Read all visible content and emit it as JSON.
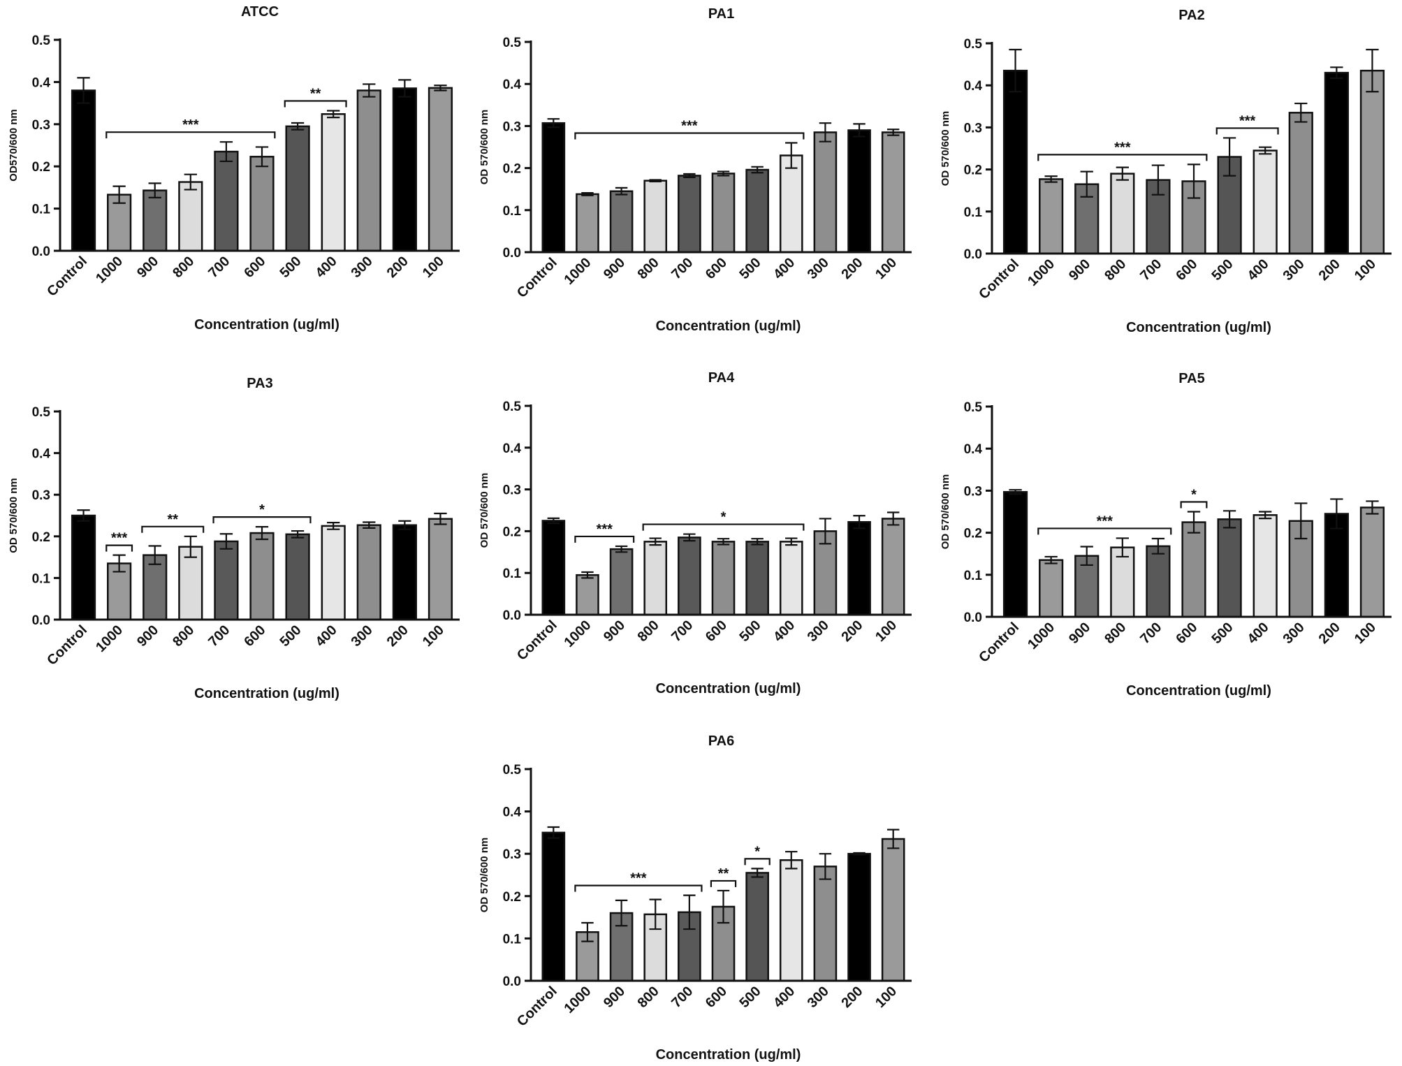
{
  "chart_data": [
    {
      "type": "bar",
      "title": "ATCC",
      "ylabel": "OD570/600 nm",
      "xlabel": "Concentration (ug/ml)",
      "ylim": [
        0,
        0.5
      ],
      "yticks": [
        "0.0",
        "0.1",
        "0.2",
        "0.3",
        "0.4",
        "0.5"
      ],
      "categories": [
        "Control",
        "1000",
        "900",
        "800",
        "700",
        "600",
        "500",
        "400",
        "300",
        "200",
        "100"
      ],
      "values": [
        0.38,
        0.133,
        0.143,
        0.163,
        0.235,
        0.223,
        0.295,
        0.324,
        0.38,
        0.385,
        0.386
      ],
      "errors": [
        0.03,
        0.02,
        0.017,
        0.018,
        0.023,
        0.023,
        0.008,
        0.008,
        0.015,
        0.02,
        0.006
      ],
      "colors": [
        "#000000",
        "#9a9a9a",
        "#6f6f6f",
        "#dcdcdc",
        "#595959",
        "#8e8e8e",
        "#555555",
        "#e6e6e6",
        "#8e8e8e",
        "#000000",
        "#9a9a9a"
      ],
      "annotations": [
        {
          "label": "***",
          "from": "1000",
          "to": "600"
        },
        {
          "label": "**",
          "from": "500",
          "to": "400"
        }
      ]
    },
    {
      "type": "bar",
      "title": "PA1",
      "ylabel": "OD 570/600 nm",
      "xlabel": "Concentration (ug/ml)",
      "ylim": [
        0,
        0.5
      ],
      "yticks": [
        "0.0",
        "0.1",
        "0.2",
        "0.3",
        "0.4",
        "0.5"
      ],
      "categories": [
        "Control",
        "1000",
        "900",
        "800",
        "700",
        "600",
        "500",
        "400",
        "300",
        "200",
        "100"
      ],
      "values": [
        0.307,
        0.138,
        0.145,
        0.17,
        0.182,
        0.187,
        0.196,
        0.23,
        0.285,
        0.29,
        0.285
      ],
      "errors": [
        0.01,
        0.003,
        0.008,
        0.002,
        0.004,
        0.005,
        0.007,
        0.03,
        0.022,
        0.015,
        0.007
      ],
      "colors": [
        "#000000",
        "#9a9a9a",
        "#6f6f6f",
        "#dcdcdc",
        "#595959",
        "#8e8e8e",
        "#555555",
        "#e6e6e6",
        "#8e8e8e",
        "#000000",
        "#9a9a9a"
      ],
      "annotations": [
        {
          "label": "***",
          "from": "1000",
          "to": "400"
        }
      ]
    },
    {
      "type": "bar",
      "title": "PA2",
      "ylabel": "OD 570/600 nm",
      "xlabel": "Concentration (ug/ml)",
      "ylim": [
        0,
        0.5
      ],
      "yticks": [
        "0.0",
        "0.1",
        "0.2",
        "0.3",
        "0.4",
        "0.5"
      ],
      "categories": [
        "Control",
        "1000",
        "900",
        "800",
        "700",
        "600",
        "500",
        "400",
        "300",
        "200",
        "100"
      ],
      "values": [
        0.435,
        0.177,
        0.165,
        0.19,
        0.175,
        0.172,
        0.23,
        0.245,
        0.335,
        0.43,
        0.435
      ],
      "errors": [
        0.05,
        0.007,
        0.03,
        0.015,
        0.035,
        0.04,
        0.045,
        0.008,
        0.022,
        0.013,
        0.05
      ],
      "colors": [
        "#000000",
        "#9a9a9a",
        "#6f6f6f",
        "#dcdcdc",
        "#595959",
        "#8e8e8e",
        "#555555",
        "#e6e6e6",
        "#8e8e8e",
        "#000000",
        "#9a9a9a"
      ],
      "annotations": [
        {
          "label": "***",
          "from": "1000",
          "to": "600"
        },
        {
          "label": "***",
          "from": "500",
          "to": "400"
        }
      ]
    },
    {
      "type": "bar",
      "title": "PA3",
      "ylabel": "OD 570/600 nm",
      "xlabel": "Concentration (ug/ml)",
      "ylim": [
        0,
        0.5
      ],
      "yticks": [
        "0.0",
        "0.1",
        "0.2",
        "0.3",
        "0.4",
        "0.5"
      ],
      "categories": [
        "Control",
        "1000",
        "900",
        "800",
        "700",
        "600",
        "500",
        "400",
        "300",
        "200",
        "100"
      ],
      "values": [
        0.25,
        0.135,
        0.155,
        0.175,
        0.188,
        0.208,
        0.205,
        0.225,
        0.227,
        0.227,
        0.242
      ],
      "errors": [
        0.013,
        0.02,
        0.022,
        0.025,
        0.018,
        0.015,
        0.008,
        0.008,
        0.007,
        0.01,
        0.013
      ],
      "colors": [
        "#000000",
        "#9a9a9a",
        "#6f6f6f",
        "#dcdcdc",
        "#595959",
        "#8e8e8e",
        "#555555",
        "#e6e6e6",
        "#8e8e8e",
        "#000000",
        "#9a9a9a"
      ],
      "annotations": [
        {
          "label": "***",
          "from": "1000",
          "to": "1000"
        },
        {
          "label": "**",
          "from": "900",
          "to": "800"
        },
        {
          "label": "*",
          "from": "700",
          "to": "500"
        }
      ]
    },
    {
      "type": "bar",
      "title": "PA4",
      "ylabel": "OD 570/600 nm",
      "xlabel": "Concentration (ug/ml)",
      "ylim": [
        0,
        0.5
      ],
      "yticks": [
        "0.0",
        "0.1",
        "0.2",
        "0.3",
        "0.4",
        "0.5"
      ],
      "categories": [
        "Control",
        "1000",
        "900",
        "800",
        "700",
        "600",
        "500",
        "400",
        "300",
        "200",
        "100"
      ],
      "values": [
        0.225,
        0.095,
        0.157,
        0.175,
        0.185,
        0.175,
        0.175,
        0.175,
        0.2,
        0.222,
        0.23
      ],
      "errors": [
        0.006,
        0.007,
        0.007,
        0.008,
        0.008,
        0.007,
        0.007,
        0.008,
        0.03,
        0.015,
        0.015
      ],
      "colors": [
        "#000000",
        "#9a9a9a",
        "#6f6f6f",
        "#dcdcdc",
        "#595959",
        "#8e8e8e",
        "#555555",
        "#e6e6e6",
        "#8e8e8e",
        "#000000",
        "#9a9a9a"
      ],
      "annotations": [
        {
          "label": "***",
          "from": "1000",
          "to": "900"
        },
        {
          "label": "*",
          "from": "800",
          "to": "400"
        }
      ]
    },
    {
      "type": "bar",
      "title": "PA5",
      "ylabel": "OD 570/600 nm",
      "xlabel": "Concentration (ug/ml)",
      "ylim": [
        0,
        0.5
      ],
      "yticks": [
        "0.0",
        "0.1",
        "0.2",
        "0.3",
        "0.4",
        "0.5"
      ],
      "categories": [
        "Control",
        "1000",
        "900",
        "800",
        "700",
        "600",
        "500",
        "400",
        "300",
        "200",
        "100"
      ],
      "values": [
        0.297,
        0.135,
        0.145,
        0.165,
        0.168,
        0.225,
        0.232,
        0.242,
        0.228,
        0.245,
        0.26
      ],
      "errors": [
        0.005,
        0.008,
        0.022,
        0.022,
        0.018,
        0.025,
        0.02,
        0.008,
        0.042,
        0.035,
        0.015
      ],
      "colors": [
        "#000000",
        "#9a9a9a",
        "#6f6f6f",
        "#dcdcdc",
        "#595959",
        "#8e8e8e",
        "#555555",
        "#e6e6e6",
        "#8e8e8e",
        "#000000",
        "#9a9a9a"
      ],
      "annotations": [
        {
          "label": "***",
          "from": "1000",
          "to": "700"
        },
        {
          "label": "*",
          "from": "600",
          "to": "600"
        }
      ]
    },
    {
      "type": "bar",
      "title": "PA6",
      "ylabel": "OD 570/600 nm",
      "xlabel": "Concentration (ug/ml)",
      "ylim": [
        0,
        0.5
      ],
      "yticks": [
        "0.0",
        "0.1",
        "0.2",
        "0.3",
        "0.4",
        "0.5"
      ],
      "categories": [
        "Control",
        "1000",
        "900",
        "800",
        "700",
        "600",
        "500",
        "400",
        "300",
        "200",
        "100"
      ],
      "values": [
        0.35,
        0.115,
        0.16,
        0.157,
        0.162,
        0.175,
        0.255,
        0.285,
        0.27,
        0.3,
        0.335
      ],
      "errors": [
        0.013,
        0.022,
        0.03,
        0.035,
        0.04,
        0.038,
        0.01,
        0.02,
        0.03,
        0.002,
        0.022
      ],
      "colors": [
        "#000000",
        "#9a9a9a",
        "#6f6f6f",
        "#dcdcdc",
        "#595959",
        "#8e8e8e",
        "#555555",
        "#e6e6e6",
        "#8e8e8e",
        "#000000",
        "#9a9a9a"
      ],
      "annotations": [
        {
          "label": "***",
          "from": "1000",
          "to": "700"
        },
        {
          "label": "**",
          "from": "600",
          "to": "600"
        },
        {
          "label": "*",
          "from": "500",
          "to": "500"
        }
      ]
    }
  ]
}
